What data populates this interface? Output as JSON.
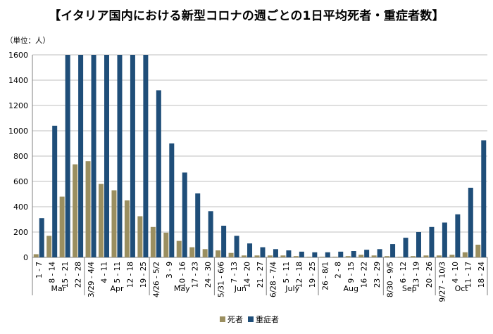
{
  "title": "【イタリア国内における新型コロナの週ごとの1日平均死者・重症者数】",
  "unit_label": "（単位：人）",
  "colors": {
    "deaths": "#9b8f60",
    "severe": "#1f4e79",
    "grid": "#bfbfbf",
    "axis": "#7f7f7f"
  },
  "chart_data": {
    "type": "bar",
    "title": "【イタリア国内における新型コロナの週ごとの1日平均死者・重症者数】",
    "ylabel": "（単位：人）",
    "xlabel": "",
    "ylim": [
      0,
      1600
    ],
    "yticks": [
      0,
      200,
      400,
      600,
      800,
      1000,
      1200,
      1400,
      1600
    ],
    "grid": true,
    "legend_position": "bottom",
    "categories": [
      "1 - 7",
      "8 - 14",
      "15 - 21",
      "22 - 28",
      "3/29 - 4/4",
      "4 - 11",
      "5 - 11",
      "12 - 18",
      "19 - 25",
      "4/26 - 5/2",
      "3 - 9",
      "10 - 16",
      "17 - 23",
      "24 - 30",
      "5/31 - 6/6",
      "7 - 13",
      "14 - 20",
      "21 - 27",
      "6/28 - 7/4",
      "5 - 11",
      "12 - 18",
      "19 - 25",
      "26 - 8/1",
      "2 - 8",
      "9 - 15",
      "16 - 22",
      "23 - 29",
      "8/30 - 9/5",
      "6 - 12",
      "13 - 19",
      "20 - 26",
      "9/27 - 10/3",
      "4 - 10",
      "11 - 17",
      "18 - 24"
    ],
    "months": [
      {
        "label": "Mar",
        "count": 4
      },
      {
        "label": "Apr",
        "count": 5
      },
      {
        "label": "May",
        "count": 5
      },
      {
        "label": "Jun",
        "count": 4
      },
      {
        "label": "July",
        "count": 4
      },
      {
        "label": "Aug",
        "count": 5
      },
      {
        "label": "Sep",
        "count": 4
      },
      {
        "label": "Oct",
        "count": 4
      }
    ],
    "series": [
      {
        "name": "死者",
        "values": [
          25,
          170,
          480,
          735,
          760,
          580,
          530,
          450,
          325,
          240,
          195,
          130,
          80,
          65,
          55,
          35,
          15,
          15,
          15,
          15,
          10,
          5,
          5,
          5,
          10,
          20,
          15,
          10,
          5,
          10,
          15,
          15,
          20,
          40,
          100
        ]
      },
      {
        "name": "重症者",
        "values": [
          310,
          1040,
          1600,
          1600,
          1600,
          1600,
          1600,
          1600,
          1600,
          1320,
          900,
          670,
          505,
          365,
          250,
          170,
          110,
          80,
          65,
          55,
          45,
          40,
          40,
          45,
          50,
          60,
          65,
          105,
          155,
          200,
          240,
          275,
          340,
          550,
          925
        ]
      }
    ]
  }
}
